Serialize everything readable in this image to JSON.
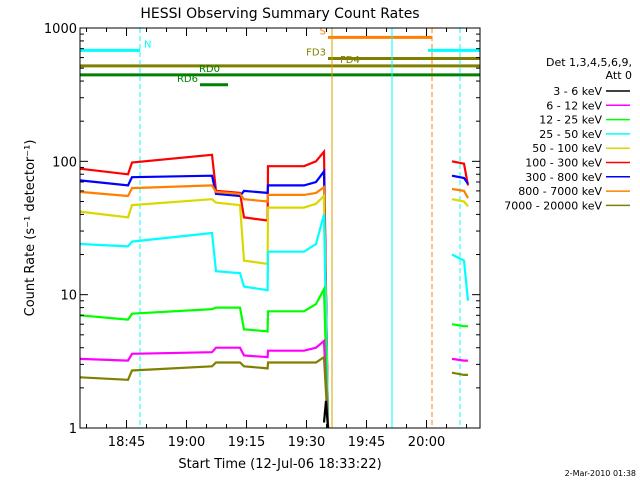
{
  "chart_data": {
    "type": "line",
    "title": "HESSI Observing Summary Count Rates",
    "xlabel": "Start Time (12-Jul-06 18:33:22)",
    "ylabel": "Count Rate (s⁻¹ detector⁻¹)",
    "yscale": "log",
    "ylim": [
      1,
      1000
    ],
    "xlim_minutes": [
      0,
      100
    ],
    "y_tick_labels": [
      "1",
      "10",
      "100",
      "1000"
    ],
    "x_tick_labels": [
      "18:45",
      "19:00",
      "19:15",
      "19:30",
      "19:45",
      "20:00"
    ],
    "legend": {
      "placement": "right",
      "header": [
        "Det 1,3,4,5,6,9,",
        "Att 0"
      ],
      "entries": [
        {
          "label": "3 - 6 keV",
          "color": "#000000"
        },
        {
          "label": "6 - 12 keV",
          "color": "#ff00ff"
        },
        {
          "label": "12 - 25 keV",
          "color": "#00ff00"
        },
        {
          "label": "25 - 50 keV",
          "color": "#00ffff"
        },
        {
          "label": "50 - 100 keV",
          "color": "#d9d900"
        },
        {
          "label": "100 - 300 keV",
          "color": "#ff0000"
        },
        {
          "label": "300 - 800 keV",
          "color": "#0000ff"
        },
        {
          "label": "800 - 7000 keV",
          "color": "#ff8000"
        },
        {
          "label": "7000 - 20000 keV",
          "color": "#808000"
        }
      ]
    },
    "series": [
      {
        "color": "#ff0000",
        "x": [
          0,
          12,
          13,
          33,
          34,
          40,
          41,
          46.9,
          47,
          56,
          59,
          61,
          62,
          93,
          96,
          97
        ],
        "y": [
          88,
          80,
          98,
          112,
          60,
          58,
          38,
          36,
          92,
          92,
          100,
          118,
          1,
          100,
          96,
          66
        ]
      },
      {
        "color": "#0000ff",
        "x": [
          0,
          12,
          13,
          33,
          34,
          40,
          41,
          46.9,
          47,
          56,
          59,
          61,
          62,
          93,
          96,
          97
        ],
        "y": [
          72,
          66,
          76,
          78,
          57,
          55,
          60,
          58,
          66,
          66,
          70,
          84,
          1,
          78,
          75,
          68
        ]
      },
      {
        "color": "#ff8000",
        "x": [
          0,
          12,
          13,
          33,
          34,
          40,
          41,
          46.9,
          47,
          56,
          59,
          61,
          62,
          93,
          96,
          97
        ],
        "y": [
          59,
          55,
          63,
          66,
          59,
          57,
          52,
          50,
          56,
          56,
          58,
          64,
          1,
          62,
          60,
          53
        ]
      },
      {
        "color": "#d9d900",
        "x": [
          0,
          12,
          13,
          33,
          34,
          40,
          41,
          46.9,
          47,
          56,
          59,
          61,
          62,
          93,
          96,
          97
        ],
        "y": [
          42,
          38,
          47,
          52,
          49,
          47,
          18,
          17,
          45,
          45,
          48,
          55,
          1,
          52,
          50,
          46
        ]
      },
      {
        "color": "#00ffff",
        "x": [
          0,
          12,
          13,
          33,
          34,
          40,
          41,
          46.9,
          47,
          56,
          59,
          61,
          62,
          93,
          96,
          97
        ],
        "y": [
          24,
          23,
          25,
          29,
          15,
          14.5,
          11.5,
          10.8,
          21,
          21,
          24,
          40,
          1,
          20,
          18,
          9
        ]
      },
      {
        "color": "#00ff00",
        "x": [
          0,
          12,
          13,
          33,
          34,
          40,
          41,
          46.9,
          47,
          56,
          59,
          61,
          62,
          93,
          96,
          97
        ],
        "y": [
          7,
          6.5,
          7.2,
          7.8,
          8,
          8,
          5.5,
          5.3,
          7.5,
          7.5,
          8.5,
          11,
          1,
          6,
          5.8,
          5.8
        ]
      },
      {
        "color": "#ff00ff",
        "x": [
          0,
          12,
          13,
          33,
          34,
          40,
          41,
          46.9,
          47,
          56,
          59,
          61,
          62,
          93,
          96,
          97
        ],
        "y": [
          3.3,
          3.2,
          3.6,
          3.7,
          4,
          4,
          3.5,
          3.4,
          3.8,
          3.8,
          4,
          4.5,
          1,
          3.3,
          3.2,
          3.2
        ]
      },
      {
        "color": "#808000",
        "x": [
          0,
          12,
          13,
          33,
          34,
          40,
          41,
          46.9,
          47,
          56,
          59,
          61,
          62,
          93,
          96,
          97
        ],
        "y": [
          2.4,
          2.3,
          2.7,
          2.9,
          3.1,
          3.1,
          2.9,
          2.8,
          3.1,
          3.1,
          3.1,
          3.4,
          1,
          2.6,
          2.5,
          2.5
        ]
      },
      {
        "color": "#000000",
        "x": [
          61,
          61.5,
          62
        ],
        "y": [
          1.1,
          1.6,
          1
        ]
      }
    ],
    "flag_bars": [
      {
        "label": "N",
        "color": "#00ffff",
        "y": 680,
        "segments": [
          [
            0,
            15
          ],
          [
            87,
            100
          ]
        ]
      },
      {
        "label": "S",
        "color": "#ff8000",
        "y": 850,
        "segments": [
          [
            62,
            88
          ]
        ]
      },
      {
        "label": "FD3",
        "color": "#808000",
        "y": 590,
        "segments": [
          [
            62,
            100
          ]
        ]
      },
      {
        "label": "FD4",
        "color": "#808000",
        "y": 520,
        "segments": [
          [
            0,
            100
          ]
        ]
      },
      {
        "label": "RD0",
        "color": "#008000",
        "y": 445,
        "segments": [
          [
            0,
            100
          ]
        ]
      },
      {
        "label": "RD6",
        "color": "#008000",
        "y": 375,
        "segments": [
          [
            30,
            37
          ]
        ]
      }
    ],
    "vertical_lines": [
      {
        "x": 15,
        "color": "#00ffff",
        "dashed": true
      },
      {
        "x": 63,
        "color": "#d9a000",
        "dashed": false
      },
      {
        "x": 78,
        "color": "#00ffff",
        "dashed": false
      },
      {
        "x": 88,
        "color": "#ff8000",
        "dashed": true
      },
      {
        "x": 95,
        "color": "#00ffff",
        "dashed": true
      }
    ]
  },
  "footer": {
    "timestamp": "2-Mar-2010 01:38"
  }
}
